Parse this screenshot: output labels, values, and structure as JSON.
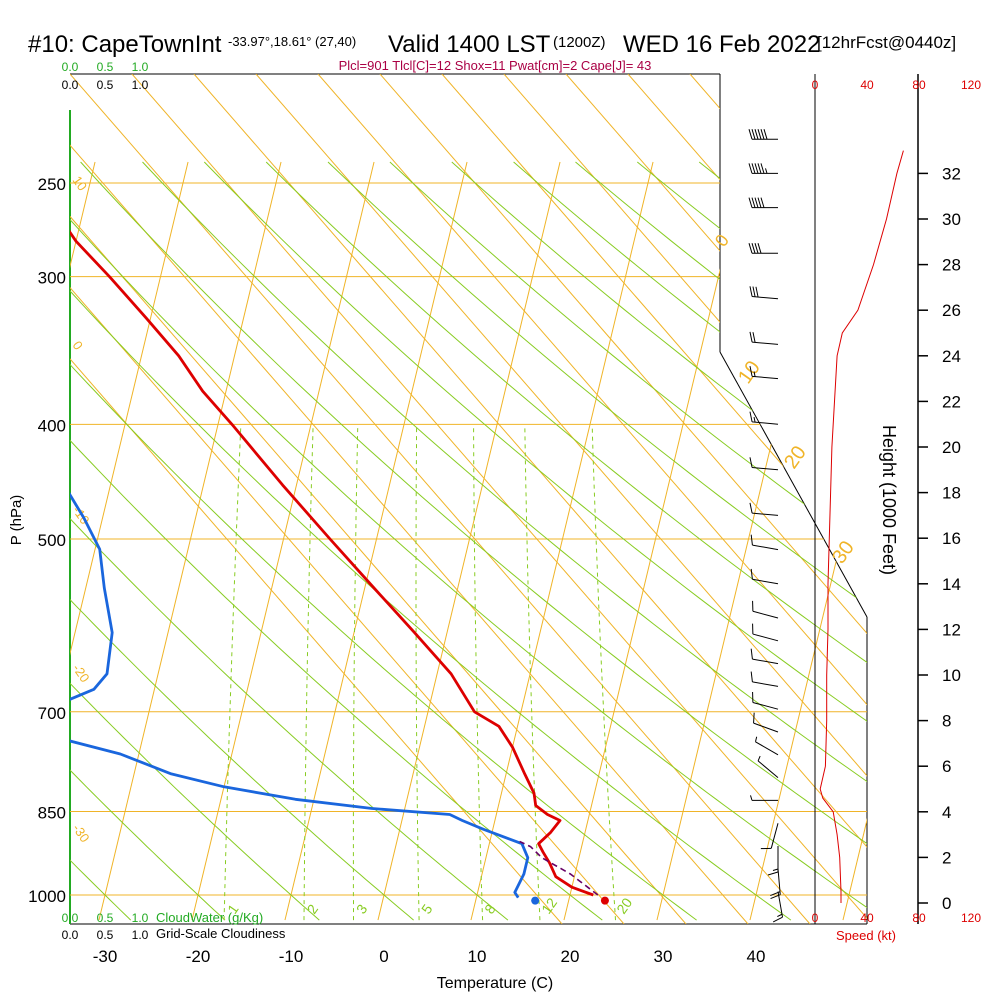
{
  "header": {
    "station": "#10: CapeTownInt",
    "coords": "-33.97°,18.61° (27,40)",
    "valid": "Valid 1400 LST",
    "utc": "(1200Z)",
    "date": "WED 16 Feb 2022",
    "forecast": "[12hrFcst@0440z]",
    "indices": "Plcl=901 Tlcl[C]=12 Shox=11 Pwat[cm]=2 Cape[J]= 43"
  },
  "cloudwater": {
    "label": "CloudWater (g/Kg)",
    "ticks": [
      "0.0",
      "0.5",
      "1.0"
    ],
    "color": "#22aa22"
  },
  "cloudiness": {
    "label": "Grid-Scale Cloudiness",
    "ticks": [
      "0.0",
      "0.5",
      "1.0"
    ]
  },
  "chart_data": {
    "type": "line",
    "title": "#10: CapeTownInt",
    "xlabel": "Temperature (C)",
    "ylabel": "P (hPa)",
    "xlim": [
      -30,
      40
    ],
    "pressure_ticks": [
      250,
      300,
      400,
      500,
      700,
      850,
      1000
    ],
    "temperature_ticks": [
      -30,
      -20,
      -10,
      0,
      10,
      20,
      30,
      40
    ],
    "series": [
      {
        "name": "Temperature",
        "color": "#dd0000",
        "points": [
          {
            "p": 1000,
            "t": 22.5
          },
          {
            "p": 985,
            "t": 20.0
          },
          {
            "p": 965,
            "t": 18.0
          },
          {
            "p": 940,
            "t": 17.0
          },
          {
            "p": 920,
            "t": 16.0
          },
          {
            "p": 905,
            "t": 15.3
          },
          {
            "p": 885,
            "t": 16.3
          },
          {
            "p": 865,
            "t": 17.0
          },
          {
            "p": 855,
            "t": 15.5
          },
          {
            "p": 840,
            "t": 14.0
          },
          {
            "p": 820,
            "t": 13.5
          },
          {
            "p": 790,
            "t": 12.0
          },
          {
            "p": 750,
            "t": 10.0
          },
          {
            "p": 720,
            "t": 8.0
          },
          {
            "p": 700,
            "t": 5.0
          },
          {
            "p": 650,
            "t": 1.5
          },
          {
            "p": 600,
            "t": -3.5
          },
          {
            "p": 550,
            "t": -9.0
          },
          {
            "p": 500,
            "t": -15.0
          },
          {
            "p": 450,
            "t": -21.5
          },
          {
            "p": 400,
            "t": -28.5
          },
          {
            "p": 375,
            "t": -32.5
          },
          {
            "p": 350,
            "t": -36.0
          },
          {
            "p": 325,
            "t": -40.5
          },
          {
            "p": 300,
            "t": -45.5
          },
          {
            "p": 280,
            "t": -50.0
          },
          {
            "p": 264,
            "t": -53.0
          }
        ]
      },
      {
        "name": "Dewpoint",
        "color": "#1a66dd",
        "points": [
          {
            "p": 1005,
            "t": 14.5
          },
          {
            "p": 995,
            "t": 14.0
          },
          {
            "p": 960,
            "t": 14.5
          },
          {
            "p": 930,
            "t": 14.5
          },
          {
            "p": 905,
            "t": 13.5
          },
          {
            "p": 880,
            "t": 9.0
          },
          {
            "p": 865,
            "t": 6.5
          },
          {
            "p": 855,
            "t": 5.0
          },
          {
            "p": 845,
            "t": -3.5
          },
          {
            "p": 830,
            "t": -12.0
          },
          {
            "p": 810,
            "t": -20.0
          },
          {
            "p": 790,
            "t": -26.0
          },
          {
            "p": 760,
            "t": -32.0
          },
          {
            "p": 740,
            "t": -38.0
          },
          {
            "p": 720,
            "t": -42.0
          },
          {
            "p": 710,
            "t": -42.5
          },
          {
            "p": 690,
            "t": -40.0
          },
          {
            "p": 670,
            "t": -36.5
          },
          {
            "p": 650,
            "t": -35.5
          },
          {
            "p": 600,
            "t": -36.0
          },
          {
            "p": 550,
            "t": -38.0
          },
          {
            "p": 510,
            "t": -39.5
          },
          {
            "p": 480,
            "t": -42.0
          },
          {
            "p": 450,
            "t": -45.0
          },
          {
            "p": 420,
            "t": -51.0
          },
          {
            "p": 390,
            "t": -56.0
          },
          {
            "p": 370,
            "t": -59.0
          },
          {
            "p": 355,
            "t": -62.0
          },
          {
            "p": 340,
            "t": -65.0
          },
          {
            "p": 320,
            "t": -68.0
          },
          {
            "p": 300,
            "t": -71.0
          },
          {
            "p": 285,
            "t": -73.0
          },
          {
            "p": 265,
            "t": -76.0
          }
        ]
      },
      {
        "name": "Parcel",
        "color": "#660066",
        "points": [
          {
            "p": 1000,
            "t": 23.0
          },
          {
            "p": 960,
            "t": 19.5
          },
          {
            "p": 930,
            "t": 16.0
          },
          {
            "p": 910,
            "t": 14.5
          },
          {
            "p": 901,
            "t": 13.2
          }
        ]
      }
    ],
    "surface_markers": [
      {
        "name": "Surface temperature",
        "t": 23.9,
        "p": 1011,
        "color": "#dd0000"
      },
      {
        "name": "Surface dewpoint",
        "t": 16.4,
        "p": 1011,
        "color": "#1a66dd"
      }
    ],
    "isotherm_labels": [
      "0",
      "10",
      "20",
      "30",
      "-10",
      "-20",
      "-30",
      "10",
      "0",
      "-10",
      "-20",
      "-30"
    ],
    "mixing_ratio_labels": [
      "1",
      "2",
      "3",
      "5",
      "8",
      "12",
      "20"
    ],
    "height_axis": {
      "label": "Height (1000 Feet)",
      "ticks": [
        0,
        2,
        4,
        6,
        8,
        10,
        12,
        14,
        16,
        18,
        20,
        22,
        24,
        26,
        28,
        30,
        32
      ]
    },
    "wind_speed_axis": {
      "label": "Speed (kt)",
      "ticks": [
        0,
        40,
        80,
        120
      ],
      "xlim": [
        0,
        120
      ],
      "color": "#dd0000",
      "profile": [
        {
          "h": 0,
          "s": 20
        },
        {
          "h": 0.5,
          "s": 20
        },
        {
          "h": 2,
          "s": 19
        },
        {
          "h": 3,
          "s": 17
        },
        {
          "h": 4,
          "s": 14
        },
        {
          "h": 4.6,
          "s": 6
        },
        {
          "h": 5,
          "s": 4
        },
        {
          "h": 6,
          "s": 8
        },
        {
          "h": 8,
          "s": 9
        },
        {
          "h": 10,
          "s": 9
        },
        {
          "h": 12,
          "s": 10
        },
        {
          "h": 14,
          "s": 10
        },
        {
          "h": 16,
          "s": 11
        },
        {
          "h": 18,
          "s": 12
        },
        {
          "h": 20,
          "s": 13
        },
        {
          "h": 22,
          "s": 15
        },
        {
          "h": 24,
          "s": 17
        },
        {
          "h": 25,
          "s": 21
        },
        {
          "h": 26,
          "s": 33
        },
        {
          "h": 28,
          "s": 45
        },
        {
          "h": 30,
          "s": 55
        },
        {
          "h": 32,
          "s": 63
        },
        {
          "h": 33,
          "s": 68
        }
      ]
    },
    "wind_barbs": [
      {
        "h": 0.5,
        "dir": 170,
        "spd": 15
      },
      {
        "h": 1.5,
        "dir": 175,
        "spd": 18
      },
      {
        "h": 2.5,
        "dir": 180,
        "spd": 16
      },
      {
        "h": 3.5,
        "dir": 195,
        "spd": 12
      },
      {
        "h": 4.5,
        "dir": 270,
        "spd": 5
      },
      {
        "h": 5.5,
        "dir": 310,
        "spd": 5
      },
      {
        "h": 6.5,
        "dir": 300,
        "spd": 7
      },
      {
        "h": 7.5,
        "dir": 290,
        "spd": 8
      },
      {
        "h": 8.5,
        "dir": 285,
        "spd": 8
      },
      {
        "h": 9.5,
        "dir": 280,
        "spd": 9
      },
      {
        "h": 10.5,
        "dir": 280,
        "spd": 9
      },
      {
        "h": 11.5,
        "dir": 285,
        "spd": 10
      },
      {
        "h": 12.5,
        "dir": 285,
        "spd": 10
      },
      {
        "h": 14,
        "dir": 280,
        "spd": 10
      },
      {
        "h": 15.5,
        "dir": 280,
        "spd": 10
      },
      {
        "h": 17,
        "dir": 275,
        "spd": 11
      },
      {
        "h": 19,
        "dir": 275,
        "spd": 12
      },
      {
        "h": 21,
        "dir": 275,
        "spd": 13
      },
      {
        "h": 23,
        "dir": 275,
        "spd": 15
      },
      {
        "h": 24.5,
        "dir": 275,
        "spd": 18
      },
      {
        "h": 26.5,
        "dir": 275,
        "spd": 30
      },
      {
        "h": 28.5,
        "dir": 270,
        "spd": 40
      },
      {
        "h": 30.5,
        "dir": 270,
        "spd": 50
      },
      {
        "h": 32,
        "dir": 270,
        "spd": 55
      },
      {
        "h": 33.5,
        "dir": 270,
        "spd": 60
      }
    ],
    "colors": {
      "isobar": "#f0b428",
      "isotherm": "#f0b428",
      "dry_adiabat": "#88cc22",
      "mixing_ratio": "#88cc22",
      "cloudwater": "#22aa22"
    }
  }
}
